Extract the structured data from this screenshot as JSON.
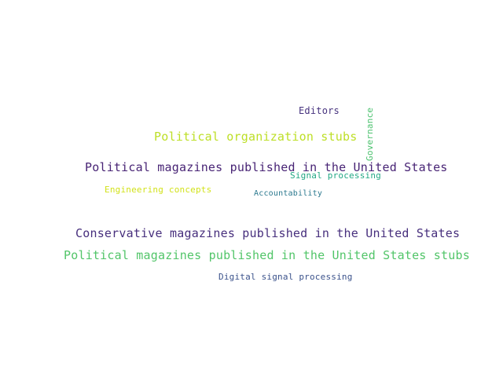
{
  "words": [
    {
      "text": "Editors",
      "color": "#46327e"
    },
    {
      "text": "Governance",
      "color": "#4ac16d"
    },
    {
      "text": "Political organization stubs",
      "color": "#bddf26"
    },
    {
      "text": "Political magazines published in the United States",
      "color": "#482475"
    },
    {
      "text": "Signal processing",
      "color": "#22a884"
    },
    {
      "text": "Engineering concepts",
      "color": "#d2e21b"
    },
    {
      "text": "Accountability",
      "color": "#2a788e"
    },
    {
      "text": "Conservative magazines published in the United States",
      "color": "#472f7d"
    },
    {
      "text": "Political magazines published in the United States stubs",
      "color": "#52c569"
    },
    {
      "text": "Digital signal processing",
      "color": "#3b528b"
    }
  ]
}
